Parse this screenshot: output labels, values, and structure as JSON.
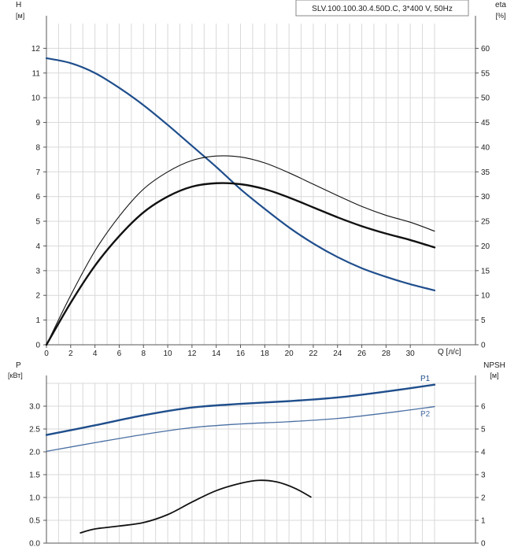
{
  "chart_data": {
    "type": "line",
    "title": "SLV.100.100.30.4.50D.C, 3*400 V, 50Hz",
    "x": {
      "label": "Q [л/с]",
      "range": [
        0,
        32
      ],
      "ticks": [
        0,
        2,
        4,
        6,
        8,
        10,
        12,
        14,
        16,
        18,
        20,
        22,
        24,
        26,
        28,
        30
      ]
    },
    "top_panel": {
      "left_axis": {
        "label": "H",
        "unit": "[м]",
        "range": [
          0,
          13
        ],
        "ticks": [
          0,
          1,
          2,
          3,
          4,
          5,
          6,
          7,
          8,
          9,
          10,
          11,
          12
        ]
      },
      "right_axis": {
        "label": "eta",
        "unit": "[%]",
        "range": [
          0,
          65
        ],
        "ticks": [
          0,
          5,
          10,
          15,
          20,
          25,
          30,
          35,
          40,
          45,
          50,
          55,
          60
        ]
      },
      "series": [
        {
          "axis": "left",
          "color": "#1f4e8c",
          "width": 2.2,
          "points": [
            [
              0,
              11.6
            ],
            [
              2,
              11.4
            ],
            [
              4,
              11.0
            ],
            [
              6,
              10.4
            ],
            [
              8,
              9.7
            ],
            [
              10,
              8.9
            ],
            [
              12,
              8.05
            ],
            [
              14,
              7.2
            ],
            [
              16,
              6.3
            ],
            [
              18,
              5.5
            ],
            [
              20,
              4.75
            ],
            [
              22,
              4.1
            ],
            [
              24,
              3.55
            ],
            [
              26,
              3.1
            ],
            [
              28,
              2.75
            ],
            [
              30,
              2.45
            ],
            [
              32,
              2.2
            ]
          ]
        },
        {
          "axis": "right",
          "color": "#111111",
          "width": 1.1,
          "points": [
            [
              0,
              0
            ],
            [
              2,
              10
            ],
            [
              4,
              19
            ],
            [
              6,
              26
            ],
            [
              8,
              31.5
            ],
            [
              10,
              35
            ],
            [
              12,
              37.3
            ],
            [
              14,
              38.2
            ],
            [
              16,
              38
            ],
            [
              18,
              36.8
            ],
            [
              20,
              34.8
            ],
            [
              22,
              32.5
            ],
            [
              24,
              30.2
            ],
            [
              26,
              28
            ],
            [
              28,
              26.2
            ],
            [
              30,
              24.8
            ],
            [
              32,
              23
            ]
          ]
        },
        {
          "axis": "right",
          "color": "#111111",
          "width": 2.4,
          "points": [
            [
              0,
              0
            ],
            [
              2,
              8.5
            ],
            [
              4,
              16
            ],
            [
              6,
              22
            ],
            [
              8,
              26.8
            ],
            [
              10,
              30
            ],
            [
              12,
              32
            ],
            [
              14,
              32.7
            ],
            [
              16,
              32.5
            ],
            [
              18,
              31.5
            ],
            [
              20,
              29.8
            ],
            [
              22,
              27.8
            ],
            [
              24,
              25.8
            ],
            [
              26,
              24
            ],
            [
              28,
              22.5
            ],
            [
              30,
              21.2
            ],
            [
              32,
              19.7
            ]
          ]
        }
      ]
    },
    "bottom_panel": {
      "left_axis": {
        "label": "P",
        "unit": "[кВт]",
        "range": [
          0,
          3.5
        ],
        "ticks": [
          "0.0",
          "0.5",
          "1.0",
          "1.5",
          "2.0",
          "2.5",
          "3.0"
        ]
      },
      "right_axis": {
        "label": "NPSH",
        "unit": "[м]",
        "range": [
          0,
          7
        ],
        "ticks": [
          0,
          1,
          2,
          3,
          4,
          5,
          6
        ]
      },
      "series": [
        {
          "name": "P1",
          "axis": "left",
          "color": "#1f4e8c",
          "width": 2.4,
          "points": [
            [
              0,
              2.37
            ],
            [
              4,
              2.58
            ],
            [
              8,
              2.8
            ],
            [
              12,
              2.97
            ],
            [
              16,
              3.05
            ],
            [
              20,
              3.11
            ],
            [
              24,
              3.19
            ],
            [
              28,
              3.32
            ],
            [
              32,
              3.47
            ]
          ]
        },
        {
          "name": "P2",
          "axis": "left",
          "color": "#4a6fa3",
          "width": 1.3,
          "points": [
            [
              0,
              2.01
            ],
            [
              4,
              2.2
            ],
            [
              8,
              2.38
            ],
            [
              12,
              2.53
            ],
            [
              16,
              2.61
            ],
            [
              20,
              2.66
            ],
            [
              24,
              2.73
            ],
            [
              28,
              2.85
            ],
            [
              32,
              2.99
            ]
          ]
        },
        {
          "axis": "right",
          "color": "#111111",
          "width": 1.8,
          "points": [
            [
              2.8,
              0.45
            ],
            [
              4,
              0.62
            ],
            [
              6,
              0.75
            ],
            [
              8,
              0.9
            ],
            [
              10,
              1.25
            ],
            [
              12,
              1.8
            ],
            [
              14,
              2.3
            ],
            [
              16,
              2.62
            ],
            [
              17.5,
              2.75
            ],
            [
              19,
              2.68
            ],
            [
              20.5,
              2.4
            ],
            [
              21.8,
              2.02
            ]
          ]
        }
      ]
    }
  }
}
